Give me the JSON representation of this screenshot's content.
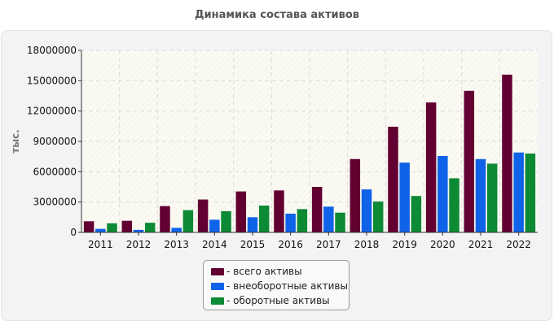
{
  "chart_data": {
    "type": "bar",
    "title": "Динамика состава активов",
    "ylabel": "тыс.",
    "xlabel": "",
    "ylim": [
      0,
      18000000
    ],
    "yticks": [
      0,
      3000000,
      6000000,
      9000000,
      12000000,
      15000000,
      18000000
    ],
    "categories": [
      "2011",
      "2012",
      "2013",
      "2014",
      "2015",
      "2016",
      "2017",
      "2018",
      "2019",
      "2020",
      "2021",
      "2022"
    ],
    "series": [
      {
        "name": "- всего активы",
        "color": "#620031",
        "values": [
          1100000,
          1150000,
          2600000,
          3250000,
          4050000,
          4150000,
          4500000,
          7250000,
          10450000,
          12850000,
          14000000,
          15600000
        ]
      },
      {
        "name": "- внеоборотные активы",
        "color": "#0f63e8",
        "values": [
          350000,
          250000,
          450000,
          1250000,
          1500000,
          1850000,
          2550000,
          4250000,
          6900000,
          7550000,
          7250000,
          7900000
        ]
      },
      {
        "name": "- оборотные активы",
        "color": "#0d8a34",
        "values": [
          900000,
          950000,
          2200000,
          2100000,
          2650000,
          2300000,
          1950000,
          3050000,
          3600000,
          5350000,
          6800000,
          7800000
        ]
      }
    ],
    "grid": true,
    "legend_position": "bottom"
  }
}
